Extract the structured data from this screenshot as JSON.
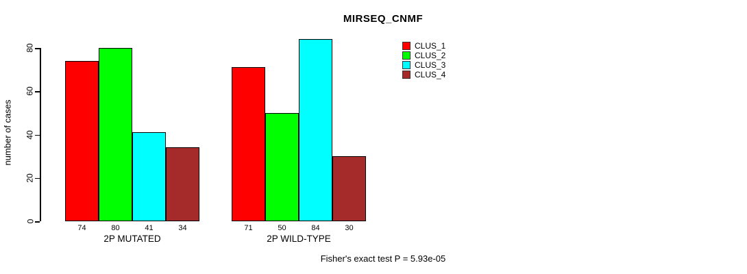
{
  "chart_data": {
    "type": "bar",
    "title": "MIRSEQ_CNMF",
    "ylabel": "number of cases",
    "xlabel": "",
    "groups": [
      "2P MUTATED",
      "2P WILD-TYPE"
    ],
    "series": [
      {
        "name": "CLUS_1",
        "color": "#FF0000",
        "values": [
          74,
          71
        ]
      },
      {
        "name": "CLUS_2",
        "color": "#00FF00",
        "values": [
          80,
          50
        ]
      },
      {
        "name": "CLUS_3",
        "color": "#00FFFF",
        "values": [
          41,
          84
        ]
      },
      {
        "name": "CLUS_4",
        "color": "#A52A2A",
        "values": [
          34,
          30
        ]
      }
    ],
    "bar_labels": [
      [
        74,
        80,
        41,
        34
      ],
      [
        71,
        50,
        84,
        30
      ]
    ],
    "yticks": [
      0,
      20,
      40,
      60,
      80
    ],
    "ylim": [
      0,
      84
    ],
    "grid": false,
    "legend_position": "inside-top-right",
    "annotation": "Fisher's exact test P = 5.93e-05"
  },
  "colors": {
    "background": "#FFFFFF",
    "axis": "#000000",
    "clus_1": "#FF0000",
    "clus_2": "#00FF00",
    "clus_3": "#00FFFF",
    "clus_4": "#A52A2A"
  }
}
